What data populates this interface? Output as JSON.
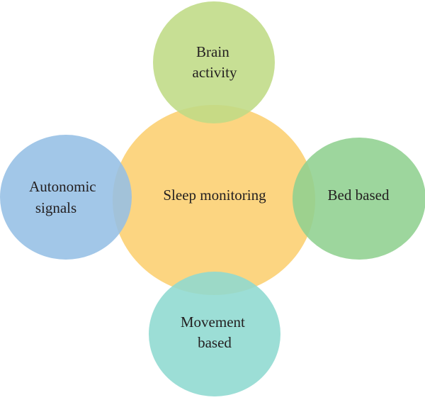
{
  "center": {
    "label": "Sleep monitoring",
    "color": "#fcd37a"
  },
  "satellites": [
    {
      "id": "top",
      "lines": [
        "Brain",
        "activity"
      ],
      "color": "#bfdb85"
    },
    {
      "id": "right",
      "lines": [
        "Bed based"
      ],
      "color": "#8fd08f"
    },
    {
      "id": "bottom",
      "lines": [
        "Movement",
        "based"
      ],
      "color": "#8ed9d0"
    },
    {
      "id": "left",
      "lines": [
        "Autonomic",
        "signals"
      ],
      "color": "#95bfe5"
    }
  ]
}
